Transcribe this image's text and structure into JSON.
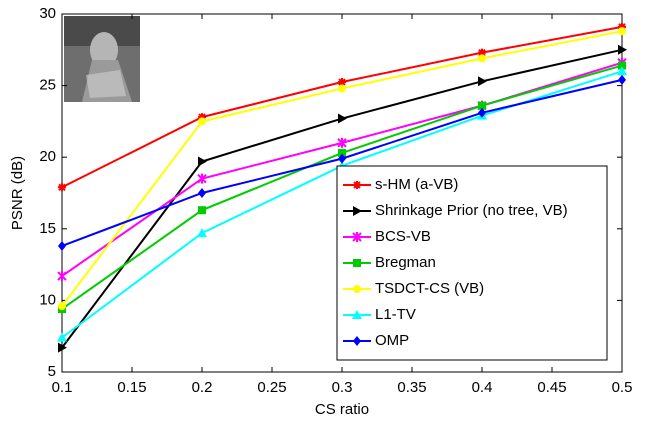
{
  "chart_data": {
    "type": "line",
    "xlabel": "CS ratio",
    "ylabel": "PSNR (dB)",
    "x": [
      0.1,
      0.2,
      0.3,
      0.4,
      0.5
    ],
    "xlim": [
      0.1,
      0.5
    ],
    "xticks": [
      0.1,
      0.15,
      0.2,
      0.25,
      0.3,
      0.35,
      0.4,
      0.45,
      0.5
    ],
    "ylim": [
      5,
      30
    ],
    "yticks": [
      5,
      10,
      15,
      20,
      25,
      30
    ],
    "legend": "lower right",
    "series": [
      {
        "name": "s-HM (a-VB)",
        "color": "#ff0000",
        "marker": "star",
        "values": [
          17.9,
          22.8,
          25.25,
          27.3,
          29.1
        ]
      },
      {
        "name": "Shrinkage Prior (no tree, VB)",
        "color": "#000000",
        "marker": "triangle-right",
        "values": [
          6.7,
          19.7,
          22.7,
          25.3,
          27.5
        ]
      },
      {
        "name": "BCS-VB",
        "color": "#ff00ff",
        "marker": "x",
        "values": [
          11.7,
          18.5,
          21.0,
          23.6,
          26.6
        ]
      },
      {
        "name": "Bregman",
        "color": "#00cc00",
        "marker": "square",
        "values": [
          9.4,
          16.3,
          20.3,
          23.6,
          26.4
        ]
      },
      {
        "name": "TSDCT-CS (VB)",
        "color": "#ffff00",
        "marker": "circle",
        "values": [
          9.6,
          22.5,
          24.8,
          26.9,
          28.8
        ]
      },
      {
        "name": "L1-TV",
        "color": "#00ffff",
        "marker": "triangle-up",
        "values": [
          7.4,
          14.7,
          19.4,
          22.9,
          26.0
        ]
      },
      {
        "name": "OMP",
        "color": "#0000ff",
        "marker": "diamond",
        "values": [
          13.8,
          17.5,
          19.9,
          23.1,
          25.4
        ]
      }
    ]
  }
}
